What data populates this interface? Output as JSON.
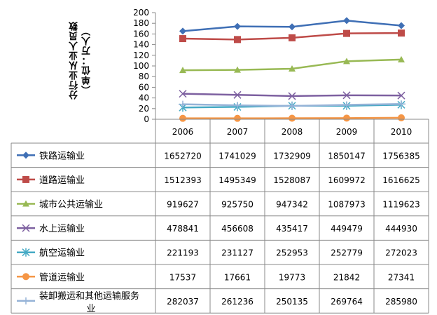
{
  "chart_data": {
    "type": "line",
    "title": "",
    "ylabel": "分行业从业人员数\n（单位：万人）",
    "ylim": [
      0,
      200
    ],
    "yticks": [
      0,
      20,
      40,
      60,
      80,
      100,
      120,
      140,
      160,
      180,
      200
    ],
    "grid": false,
    "legend_placement": "data table below plot",
    "categories": [
      "2006",
      "2007",
      "2008",
      "2009",
      "2010"
    ],
    "series": [
      {
        "name": "铁路运输业",
        "color": "#3f6fb5",
        "marker": "diamond",
        "values": [
          1652720,
          1741029,
          1732909,
          1850147,
          1756385
        ]
      },
      {
        "name": "道路运输业",
        "color": "#be4b48",
        "marker": "square",
        "values": [
          1512393,
          1495349,
          1528087,
          1609972,
          1616625
        ]
      },
      {
        "name": "城市公共运输业",
        "color": "#98b954",
        "marker": "triangle",
        "values": [
          919627,
          925750,
          947342,
          1087973,
          1119623
        ]
      },
      {
        "name": "水上运输业",
        "color": "#7d60a0",
        "marker": "x",
        "values": [
          478841,
          456608,
          435417,
          449479,
          444930
        ]
      },
      {
        "name": "航空运输业",
        "color": "#46aac5",
        "marker": "star",
        "values": [
          221193,
          231127,
          252953,
          252779,
          272023
        ]
      },
      {
        "name": "管道运输业",
        "color": "#f59646",
        "marker": "circle",
        "values": [
          17537,
          17661,
          19773,
          21842,
          27341
        ]
      },
      {
        "name": "装卸搬运和其他运输服务业",
        "color": "#95b3d7",
        "marker": "plus",
        "values": [
          282037,
          261236,
          250135,
          269764,
          285980
        ]
      }
    ]
  }
}
